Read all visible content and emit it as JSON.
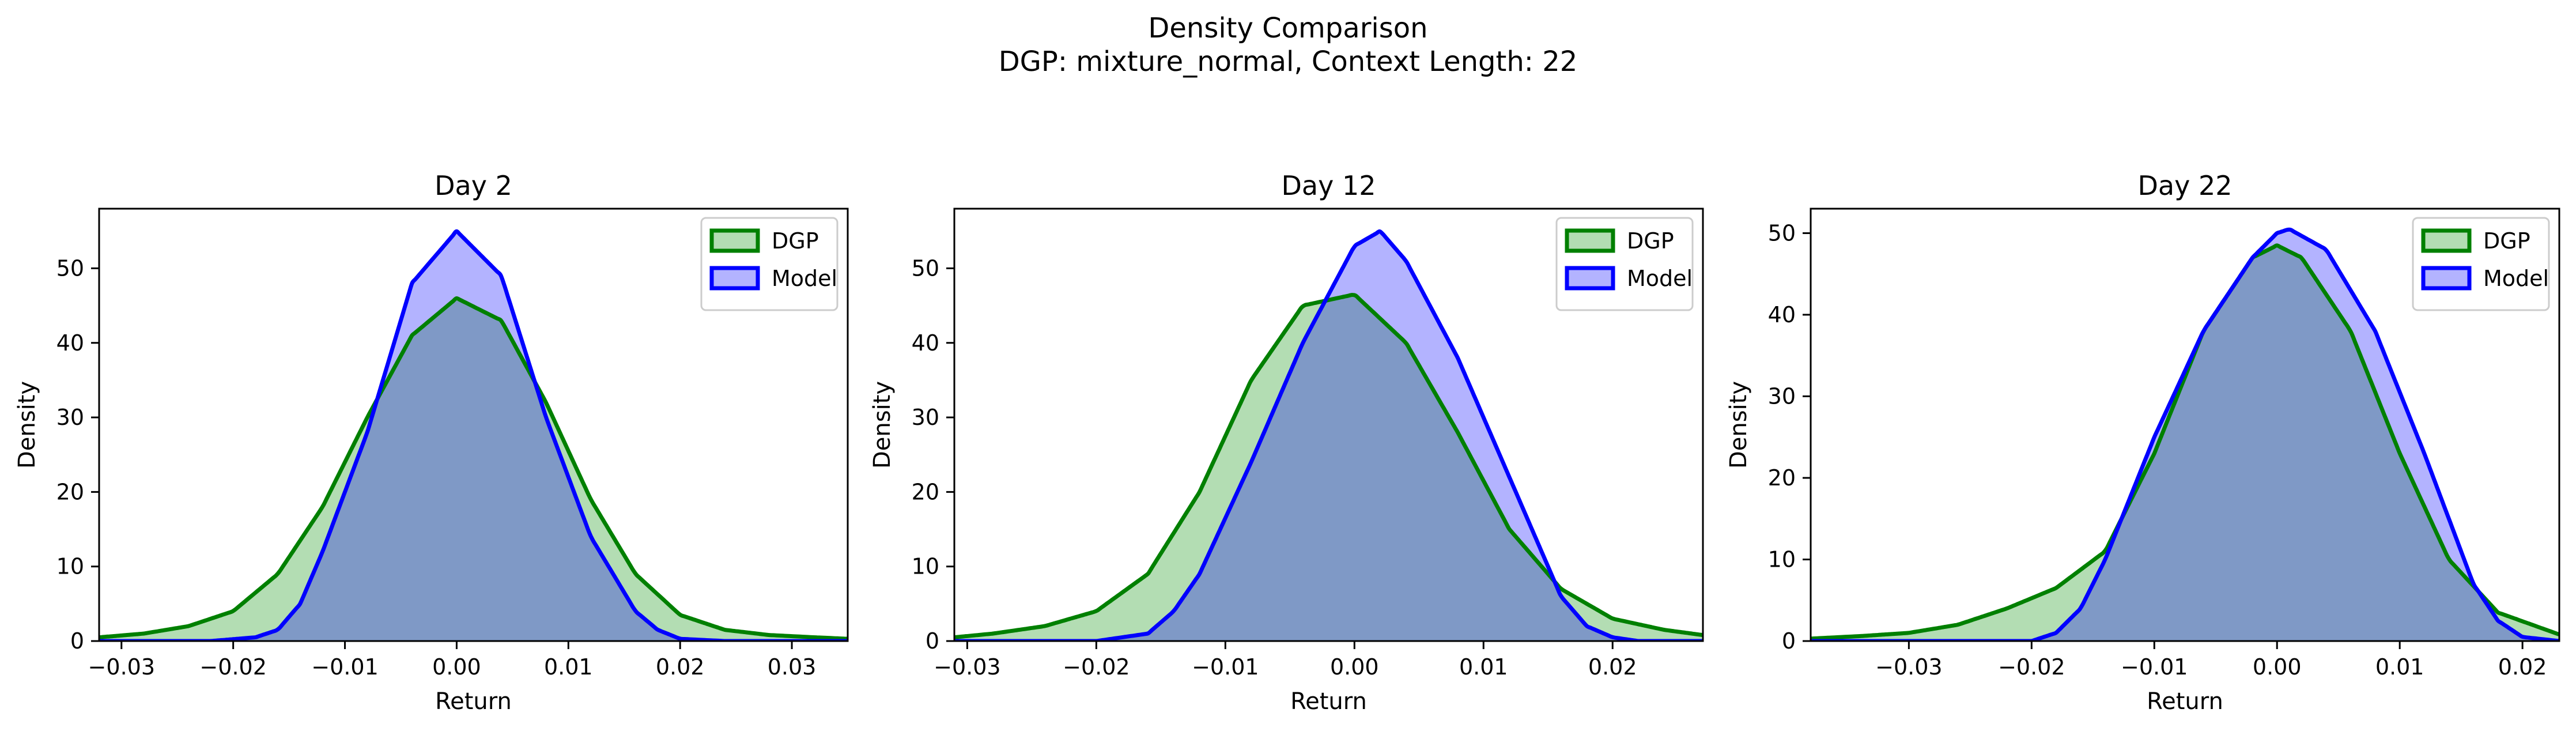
{
  "figure": {
    "title_line1": "Density Comparison",
    "title_line2": "DGP: mixture_normal, Context Length: 22"
  },
  "colors": {
    "dgp_line": "#008000",
    "dgp_fill": "#b3ddb3",
    "model_line": "#0000ff",
    "model_fill": "#b3b3ff",
    "overlap_fill": "#7f99c6",
    "overlap_line": "#00534a"
  },
  "chart_data": [
    {
      "type": "area",
      "title": "Day 2",
      "xlabel": "Return",
      "ylabel": "Density",
      "xlim": [
        -0.032,
        0.035
      ],
      "ylim": [
        0,
        58
      ],
      "xticks": [
        -0.03,
        -0.02,
        -0.01,
        0.0,
        0.01,
        0.02,
        0.03
      ],
      "xtick_labels": [
        "−0.03",
        "−0.02",
        "−0.01",
        "0.00",
        "0.01",
        "0.02",
        "0.03"
      ],
      "yticks": [
        0,
        10,
        20,
        30,
        40,
        50
      ],
      "ytick_labels": [
        "0",
        "10",
        "20",
        "30",
        "40",
        "50"
      ],
      "grid": false,
      "legend_position": "top-right",
      "series": [
        {
          "name": "DGP",
          "x": [
            -0.032,
            -0.028,
            -0.024,
            -0.02,
            -0.016,
            -0.012,
            -0.008,
            -0.004,
            0.0,
            0.004,
            0.008,
            0.012,
            0.016,
            0.02,
            0.024,
            0.028,
            0.032,
            0.035
          ],
          "y": [
            0.5,
            1.0,
            2.0,
            4.0,
            9.0,
            18.0,
            30.0,
            41.0,
            46.0,
            43.0,
            32.0,
            19.0,
            9.0,
            3.5,
            1.5,
            0.8,
            0.5,
            0.3
          ]
        },
        {
          "name": "Model",
          "x": [
            -0.032,
            -0.022,
            -0.018,
            -0.016,
            -0.014,
            -0.012,
            -0.008,
            -0.004,
            0.0,
            0.004,
            0.008,
            0.012,
            0.016,
            0.018,
            0.02,
            0.024,
            0.035
          ],
          "y": [
            0,
            0,
            0.5,
            1.5,
            5.0,
            12.0,
            28.0,
            48.0,
            55.0,
            49.0,
            30.0,
            14.0,
            4.0,
            1.5,
            0.3,
            0,
            0
          ]
        }
      ]
    },
    {
      "type": "area",
      "title": "Day 12",
      "xlabel": "Return",
      "ylabel": "Density",
      "xlim": [
        -0.031,
        0.027
      ],
      "ylim": [
        0,
        58
      ],
      "xticks": [
        -0.03,
        -0.02,
        -0.01,
        0.0,
        0.01,
        0.02
      ],
      "xtick_labels": [
        "−0.03",
        "−0.02",
        "−0.01",
        "0.00",
        "0.01",
        "0.02"
      ],
      "yticks": [
        0,
        10,
        20,
        30,
        40,
        50
      ],
      "ytick_labels": [
        "0",
        "10",
        "20",
        "30",
        "40",
        "50"
      ],
      "grid": false,
      "legend_position": "top-right",
      "series": [
        {
          "name": "DGP",
          "x": [
            -0.031,
            -0.028,
            -0.024,
            -0.02,
            -0.016,
            -0.012,
            -0.008,
            -0.004,
            0.0,
            0.004,
            0.008,
            0.012,
            0.016,
            0.02,
            0.024,
            0.027
          ],
          "y": [
            0.5,
            1.0,
            2.0,
            4.0,
            9.0,
            20.0,
            35.0,
            45.0,
            46.5,
            40.0,
            28.0,
            15.0,
            7.0,
            3.0,
            1.5,
            0.8
          ]
        },
        {
          "name": "Model",
          "x": [
            -0.031,
            -0.02,
            -0.016,
            -0.014,
            -0.012,
            -0.008,
            -0.004,
            0.0,
            0.002,
            0.004,
            0.008,
            0.012,
            0.016,
            0.018,
            0.02,
            0.022,
            0.027
          ],
          "y": [
            0,
            0,
            1.0,
            4.0,
            9.0,
            24.0,
            40.0,
            53.0,
            55.0,
            51.0,
            38.0,
            22.0,
            6.0,
            2.0,
            0.5,
            0,
            0
          ]
        }
      ]
    },
    {
      "type": "area",
      "title": "Day 22",
      "xlabel": "Return",
      "ylabel": "Density",
      "xlim": [
        -0.038,
        0.023
      ],
      "ylim": [
        0,
        53
      ],
      "xticks": [
        -0.03,
        -0.02,
        -0.01,
        0.0,
        0.01,
        0.02
      ],
      "xtick_labels": [
        "−0.03",
        "−0.02",
        "−0.01",
        "0.00",
        "0.01",
        "0.02"
      ],
      "yticks": [
        0,
        10,
        20,
        30,
        40,
        50
      ],
      "ytick_labels": [
        "0",
        "10",
        "20",
        "30",
        "40",
        "50"
      ],
      "grid": false,
      "legend_position": "top-right",
      "series": [
        {
          "name": "DGP",
          "x": [
            -0.038,
            -0.034,
            -0.03,
            -0.026,
            -0.022,
            -0.018,
            -0.014,
            -0.01,
            -0.006,
            -0.002,
            0.0,
            0.002,
            0.006,
            0.01,
            0.014,
            0.018,
            0.023
          ],
          "y": [
            0.3,
            0.6,
            1.0,
            2.0,
            4.0,
            6.5,
            11.0,
            23.0,
            38.0,
            47.0,
            48.5,
            47.0,
            38.0,
            23.0,
            10.0,
            3.5,
            0.8
          ]
        },
        {
          "name": "Model",
          "x": [
            -0.038,
            -0.02,
            -0.018,
            -0.016,
            -0.014,
            -0.01,
            -0.006,
            -0.002,
            0.0,
            0.001,
            0.004,
            0.008,
            0.012,
            0.016,
            0.018,
            0.02,
            0.023
          ],
          "y": [
            0,
            0,
            1.0,
            4.0,
            10.0,
            25.0,
            38.0,
            47.0,
            50.0,
            50.5,
            48.0,
            38.0,
            23.0,
            7.0,
            2.5,
            0.5,
            0
          ]
        }
      ]
    }
  ]
}
